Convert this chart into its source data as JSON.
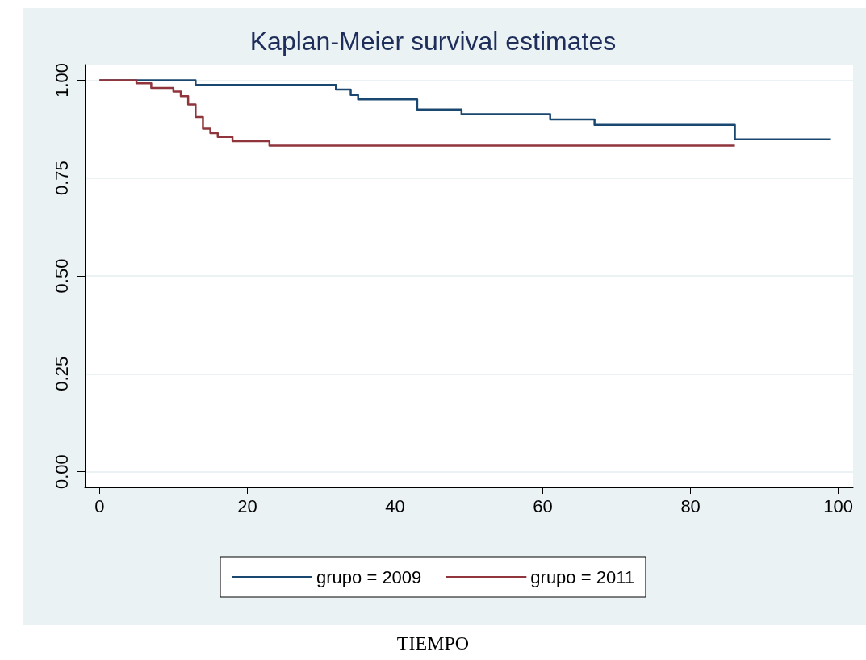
{
  "chart_data": {
    "type": "step",
    "title": "Kaplan-Meier survival estimates",
    "annotations": [
      "TIEMPO"
    ],
    "xlim": [
      -2,
      102
    ],
    "xticks": [
      0,
      20,
      40,
      60,
      80,
      100
    ],
    "ylim": [
      -0.04,
      1.04
    ],
    "yticks": [
      {
        "value": 0,
        "label": "0.00"
      },
      {
        "value": 0.25,
        "label": "0.25"
      },
      {
        "value": 0.5,
        "label": "0.50"
      },
      {
        "value": 0.75,
        "label": "0.75"
      },
      {
        "value": 1,
        "label": "1.00"
      }
    ],
    "grid": "y",
    "legend": "bottom",
    "marker": "none",
    "line_style": "solid",
    "series": [
      {
        "name": "grupo = 2009",
        "color": "#1a476f",
        "x": [
          0,
          13,
          32,
          34,
          35,
          43,
          49,
          61,
          67,
          86,
          99
        ],
        "values": [
          1,
          0.988,
          0.976,
          0.962,
          0.951,
          0.925,
          0.913,
          0.9,
          0.886,
          0.849,
          0.849
        ]
      },
      {
        "name": "grupo = 2011",
        "color": "#90353b",
        "x": [
          0,
          5,
          7,
          10,
          11,
          12,
          13,
          14,
          15,
          16,
          18,
          23,
          86
        ],
        "values": [
          1,
          0.992,
          0.98,
          0.971,
          0.959,
          0.938,
          0.906,
          0.876,
          0.865,
          0.855,
          0.844,
          0.833,
          0.833
        ]
      }
    ]
  }
}
